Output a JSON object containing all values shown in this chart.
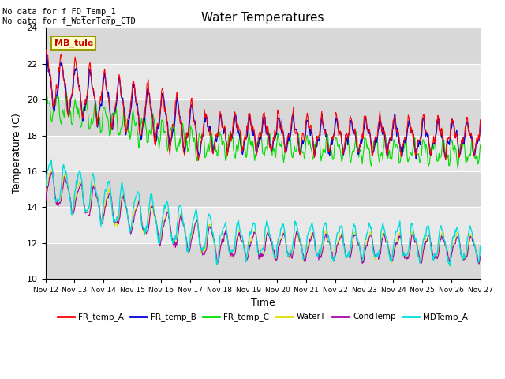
{
  "title": "Water Temperatures",
  "xlabel": "Time",
  "ylabel": "Temperature (C)",
  "ylim": [
    10,
    24
  ],
  "yticks": [
    10,
    12,
    14,
    16,
    18,
    20,
    22,
    24
  ],
  "note1": "No data for f FD_Temp_1",
  "note2": "No data for f_WaterTemp_CTD",
  "box_label": "MB_tule",
  "legend_entries": [
    "FR_temp_A",
    "FR_temp_B",
    "FR_temp_C",
    "WaterT",
    "CondTemp",
    "MDTemp_A"
  ],
  "legend_colors": [
    "#ff0000",
    "#0000dd",
    "#00dd00",
    "#dddd00",
    "#aa00aa",
    "#00dddd"
  ],
  "background_color": "#ffffff",
  "band_colors": [
    "#d8d8d8",
    "#e8e8e8",
    "#d8d8d8",
    "#e8e8e8",
    "#d8d8d8",
    "#e8e8e8",
    "#d8d8d8"
  ],
  "grid_color": "#ffffff"
}
